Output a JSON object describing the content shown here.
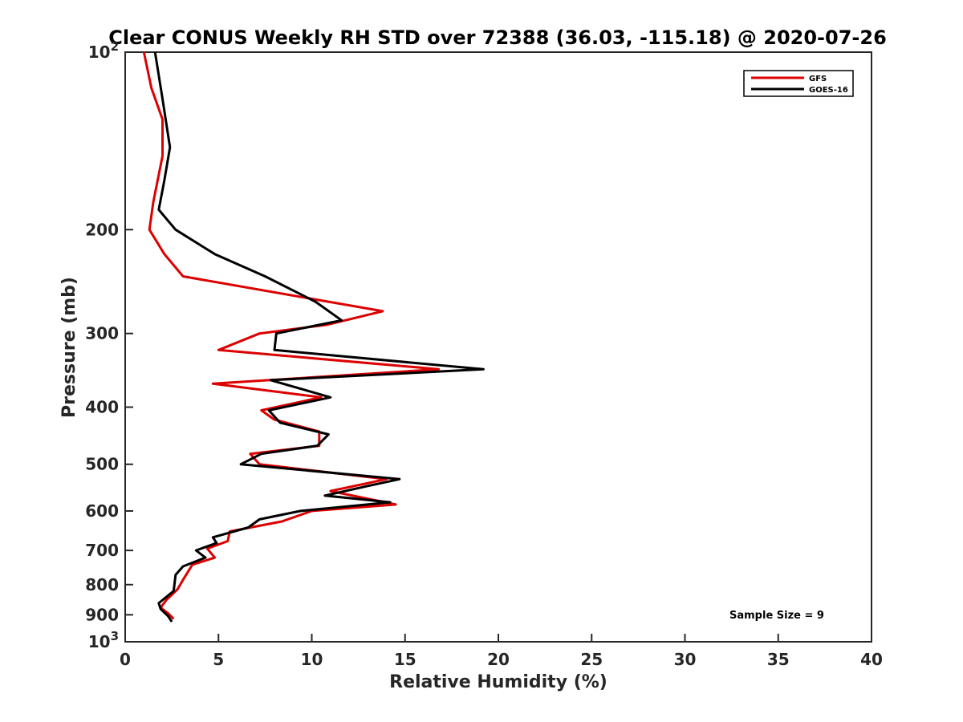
{
  "chart_data": {
    "type": "line",
    "title": "Clear CONUS Weekly RH STD over 72388 (36.03, -115.18) @ 2020-07-26",
    "xlabel": "Relative Humidity (%)",
    "ylabel": "Pressure (mb)",
    "xlim": [
      0,
      40
    ],
    "ylim": [
      100,
      1000
    ],
    "y_scale": "log",
    "y_reversed": true,
    "x_ticks": [
      0,
      5,
      10,
      15,
      20,
      25,
      30,
      35,
      40
    ],
    "x_tick_labels": [
      "0",
      "5",
      "10",
      "15",
      "20",
      "25",
      "30",
      "35",
      "40"
    ],
    "y_ticks": [
      100,
      200,
      300,
      400,
      500,
      600,
      700,
      800,
      900,
      1000
    ],
    "y_tick_labels": [
      {
        "base": "10",
        "exp": "2"
      },
      {
        "base": "200",
        "exp": ""
      },
      {
        "base": "300",
        "exp": ""
      },
      {
        "base": "400",
        "exp": ""
      },
      {
        "base": "500",
        "exp": ""
      },
      {
        "base": "600",
        "exp": ""
      },
      {
        "base": "700",
        "exp": ""
      },
      {
        "base": "800",
        "exp": ""
      },
      {
        "base": "900",
        "exp": ""
      },
      {
        "base": "10",
        "exp": "3"
      }
    ],
    "legend_position": "top-right",
    "annotation": "Sample Size = 9",
    "series": [
      {
        "name": "GFS",
        "color": "#dd0000",
        "points": [
          [
            1.0,
            100
          ],
          [
            1.4,
            115
          ],
          [
            2.0,
            130
          ],
          [
            2.0,
            150
          ],
          [
            1.5,
            180
          ],
          [
            1.3,
            200
          ],
          [
            2.1,
            220
          ],
          [
            3.1,
            240
          ],
          [
            13.8,
            275
          ],
          [
            10.8,
            290
          ],
          [
            7.2,
            300
          ],
          [
            5.0,
            320
          ],
          [
            16.8,
            345
          ],
          [
            4.7,
            365
          ],
          [
            10.5,
            385
          ],
          [
            7.3,
            405
          ],
          [
            8.0,
            420
          ],
          [
            10.4,
            440
          ],
          [
            10.4,
            465
          ],
          [
            6.7,
            480
          ],
          [
            7.2,
            500
          ],
          [
            14.0,
            530
          ],
          [
            11.0,
            555
          ],
          [
            14.5,
            585
          ],
          [
            10.0,
            600
          ],
          [
            8.4,
            625
          ],
          [
            5.6,
            650
          ],
          [
            5.5,
            675
          ],
          [
            4.4,
            695
          ],
          [
            4.8,
            720
          ],
          [
            3.6,
            740
          ],
          [
            3.1,
            785
          ],
          [
            2.8,
            815
          ],
          [
            2.2,
            850
          ],
          [
            1.9,
            875
          ],
          [
            2.3,
            895
          ],
          [
            2.6,
            915
          ]
        ]
      },
      {
        "name": "GOES-16",
        "color": "#000000",
        "points": [
          [
            1.6,
            100
          ],
          [
            2.0,
            120
          ],
          [
            2.4,
            145
          ],
          [
            2.1,
            165
          ],
          [
            1.8,
            185
          ],
          [
            2.7,
            200
          ],
          [
            4.8,
            220
          ],
          [
            7.5,
            240
          ],
          [
            10.2,
            265
          ],
          [
            11.6,
            285
          ],
          [
            8.1,
            300
          ],
          [
            8.0,
            320
          ],
          [
            19.2,
            345
          ],
          [
            7.8,
            360
          ],
          [
            11.0,
            385
          ],
          [
            7.7,
            405
          ],
          [
            8.3,
            425
          ],
          [
            10.9,
            445
          ],
          [
            10.3,
            465
          ],
          [
            7.3,
            480
          ],
          [
            6.2,
            500
          ],
          [
            14.7,
            530
          ],
          [
            12.9,
            545
          ],
          [
            10.7,
            565
          ],
          [
            14.2,
            580
          ],
          [
            9.4,
            600
          ],
          [
            7.2,
            620
          ],
          [
            6.6,
            640
          ],
          [
            4.7,
            665
          ],
          [
            4.9,
            680
          ],
          [
            3.8,
            700
          ],
          [
            4.3,
            720
          ],
          [
            3.1,
            745
          ],
          [
            2.7,
            770
          ],
          [
            2.6,
            820
          ],
          [
            1.8,
            860
          ],
          [
            1.9,
            880
          ],
          [
            2.3,
            905
          ],
          [
            2.5,
            925
          ]
        ]
      }
    ]
  }
}
